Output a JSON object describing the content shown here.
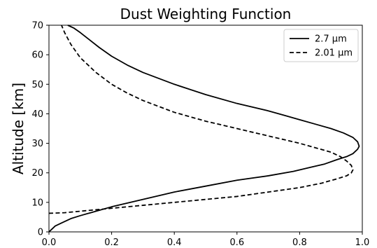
{
  "chart_data": {
    "type": "line",
    "title": "Dust Weighting Function",
    "xlabel": "",
    "ylabel": "Altitude [km]",
    "xlim": [
      0.0,
      1.0
    ],
    "ylim": [
      0,
      70
    ],
    "xticks": [
      "0.0",
      "0.2",
      "0.4",
      "0.6",
      "0.8",
      "1.0"
    ],
    "yticks": [
      "0",
      "10",
      "20",
      "30",
      "40",
      "50",
      "60",
      "70"
    ],
    "grid": false,
    "legend_position": "top-right",
    "series": [
      {
        "name": "2.7 μm",
        "style": "solid",
        "color": "#000000",
        "x": [
          0.0,
          0.01,
          0.02,
          0.04,
          0.07,
          0.1,
          0.15,
          0.2,
          0.3,
          0.4,
          0.5,
          0.6,
          0.7,
          0.78,
          0.84,
          0.88,
          0.92,
          0.95,
          0.97,
          0.985,
          0.99,
          0.985,
          0.97,
          0.94,
          0.9,
          0.85,
          0.8,
          0.75,
          0.7,
          0.6,
          0.5,
          0.4,
          0.3,
          0.25,
          0.2,
          0.16,
          0.13,
          0.1,
          0.08,
          0.06
        ],
        "y": [
          0,
          1,
          2,
          3,
          4.5,
          5.5,
          7,
          8.5,
          11,
          13.5,
          15.5,
          17.5,
          19,
          20.5,
          22,
          23,
          24.5,
          25.5,
          26.5,
          28,
          29,
          30.5,
          32,
          33.5,
          35,
          36.5,
          38,
          39.5,
          41,
          43.5,
          46.5,
          50,
          54,
          56.5,
          59.5,
          62.5,
          65,
          67.5,
          69,
          70
        ]
      },
      {
        "name": "2.01 μm",
        "style": "dashed",
        "color": "#000000",
        "x": [
          0.0,
          0.05,
          0.1,
          0.15,
          0.2,
          0.3,
          0.4,
          0.5,
          0.6,
          0.7,
          0.8,
          0.87,
          0.92,
          0.95,
          0.965,
          0.97,
          0.965,
          0.95,
          0.93,
          0.9,
          0.85,
          0.8,
          0.7,
          0.6,
          0.5,
          0.4,
          0.3,
          0.25,
          0.2,
          0.15,
          0.1,
          0.07,
          0.05,
          0.04
        ],
        "y": [
          6.3,
          6.5,
          7,
          7.5,
          8,
          9,
          10,
          11,
          12,
          13.5,
          15,
          16.5,
          18,
          19,
          20,
          21,
          22.5,
          24,
          25.5,
          27,
          28.5,
          30,
          32.5,
          35,
          37.5,
          40.5,
          44.5,
          47,
          50,
          54,
          59,
          63.5,
          67.5,
          70
        ]
      }
    ]
  }
}
